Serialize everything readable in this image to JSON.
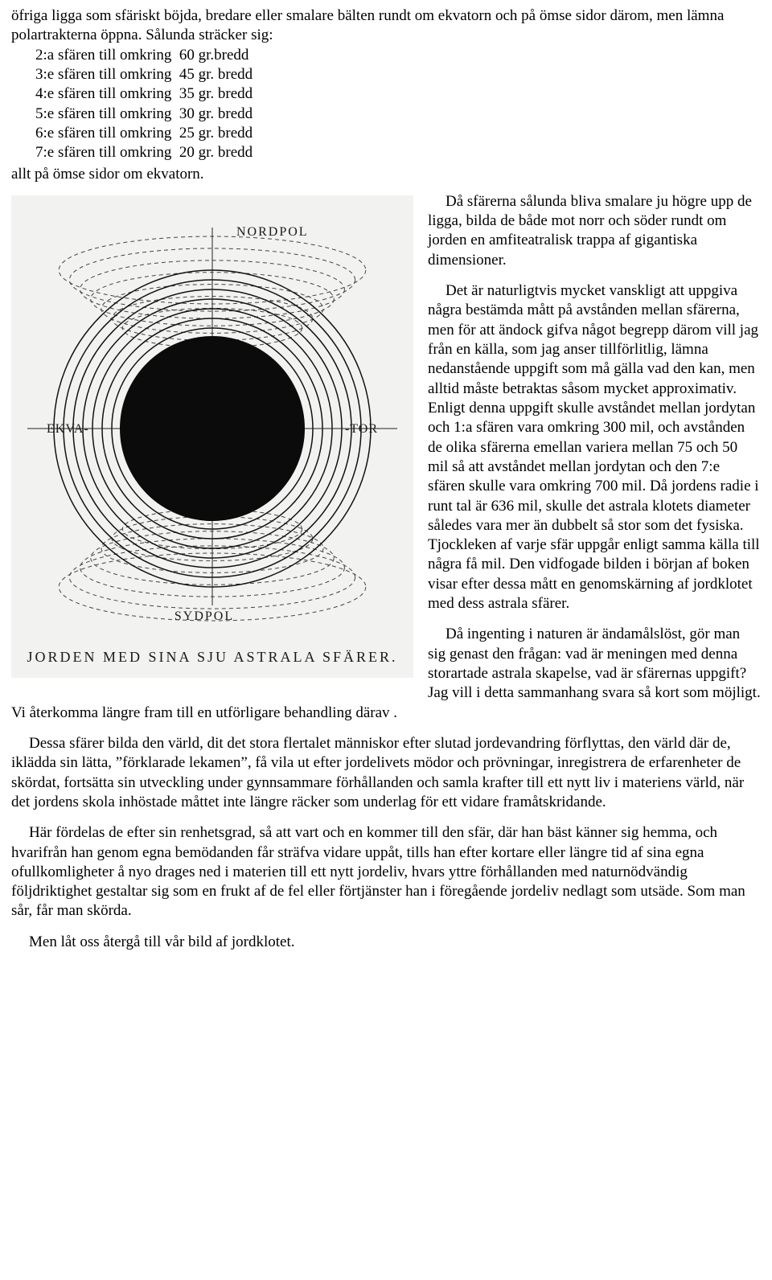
{
  "top": {
    "para1": "öfriga ligga som sfäriskt böjda, bredare eller smalare bälten rundt om ekvatorn och på ömse sidor därom, men lämna polartrakterna öppna. Sålunda sträcker sig:",
    "lines": [
      "2:a sfären till omkring  60 gr.bredd",
      "3:e sfären till omkring  45 gr. bredd",
      "4:e sfären till omkring  35 gr. bredd",
      "5:e sfären till omkring  30 gr. bredd",
      "6:e sfären till omkring  25 gr. bredd",
      "7:e sfären till omkring  20 gr. bredd"
    ],
    "closing": "allt på ömse sidor om ekvatorn."
  },
  "figure": {
    "type": "diagram",
    "background_color": "#f2f2f0",
    "nordpol": "NORDPOL",
    "sydpol": "SYDPOL",
    "ekva": "EKVA-",
    "tor": "-TOR",
    "caption": "JORDEN MED SINA SJU ASTRALA SFÄRER.",
    "label_fontsize": 16,
    "caption_fontsize": 18,
    "caption_letterspacing": 3,
    "earth_radius": 115,
    "earth_fill": "#0b0b0b",
    "solid_ring_radii": [
      125,
      137,
      149,
      161,
      173,
      185,
      197
    ],
    "solid_ring_stroke": "#111111",
    "solid_ring_width": 1.5,
    "dashed_ellipse_ry": [
      130,
      144,
      158,
      172,
      186,
      200,
      214
    ],
    "dashed_ellipse_rx_scale": 0.96,
    "dashed_stroke": "#444444",
    "dashed_width": 1,
    "dashed_pattern": "5 4",
    "axis_stroke": "#222222",
    "axis_width": 1,
    "label_font": "Georgia, 'Times New Roman', serif"
  },
  "wrap": {
    "p1": "Då sfärerna sålunda bliva smalare ju högre upp de ligga, bilda de både mot norr och söder rundt om jorden en amfiteatralisk trappa af gigantiska dimensioner.",
    "p2": "Det är naturligtvis mycket vanskligt att uppgiva några bestämda mått på avstånden mellan sfärerna, men för att ändock gifva något begrepp därom vill jag från en källa, som jag anser tillförlitlig, lämna nedanstående uppgift som må gälla vad den kan, men alltid måste betraktas såsom mycket approximativ. Enligt denna uppgift skulle avståndet mellan jordytan och 1:a sfären vara omkring 300 mil, och avstånden de olika sfärerna emellan variera mellan 75 och 50 mil så att avståndet mellan jordytan och den 7:e sfären skulle vara omkring 700 mil. Då jordens radie i runt tal är 636 mil, skulle det astrala klotets diameter således vara mer än dubbelt så stor som det fysiska. Tjockleken af varje sfär uppgår enligt samma källa till några få mil. Den vidfogade bilden i början af boken visar efter dessa mått en genomskärning af jordklotet med dess astrala sfärer."
  },
  "after": {
    "p3": "Då ingenting i naturen är ändamålslöst, gör man sig genast den frågan: vad är meningen med denna storartade astrala skapelse, vad är sfärernas uppgift? Jag vill i detta sammanhang svara så kort som möjligt. Vi återkomma längre fram till en utförligare behandling därav .",
    "p4": "Dessa sfärer bilda den värld, dit det stora flertalet människor efter slutad jordevandring förflyttas, den värld där de, iklädda sin lätta, ”förklarade lekamen”, få vila ut efter jordelivets mödor och prövningar, inregistrera de erfarenheter de skördat, fortsätta sin utveckling under gynnsammare förhållanden och samla krafter till ett nytt liv i materiens värld, när det jordens skola inhöstade måttet inte längre räcker som underlag för ett vidare framåtskridande.",
    "p5": "Här fördelas de efter sin renhetsgrad, så att vart och en kommer till den sfär, där han bäst känner sig hemma, och hvarifrån han genom egna bemödanden får sträfva vidare uppåt, tills han efter kortare eller längre tid af sina egna ofullkomligheter å nyo drages ned i materien till ett nytt jordeliv, hvars yttre förhållanden med naturnödvändig följdriktighet gestaltar sig som en frukt af de fel eller förtjänster han i föregående jordeliv nedlagt som utsäde. Som man sår, får man skörda.",
    "p6": "Men låt oss återgå till vår bild af jordklotet."
  }
}
